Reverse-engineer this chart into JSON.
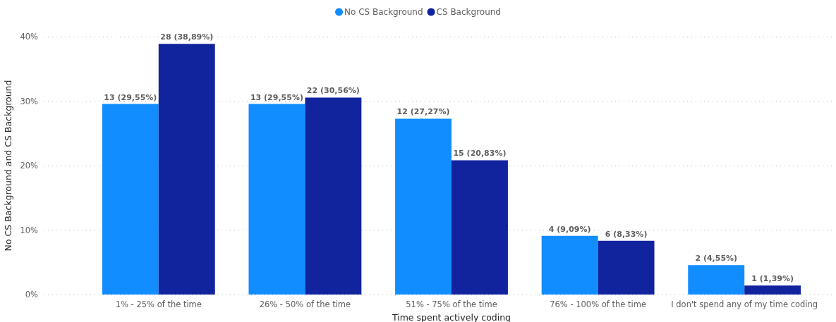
{
  "chart_data": {
    "type": "bar",
    "xlabel": "Time spent actively coding",
    "ylabel": "No CS Background and CS Background",
    "categories": [
      "1% - 25% of the time",
      "26% - 50% of the time",
      "51% - 75% of the time",
      "76% - 100% of the time",
      "I don't spend any of my time coding"
    ],
    "series": [
      {
        "name": "No CS Background",
        "color": "#118dff",
        "values": [
          29.55,
          29.55,
          27.27,
          9.09,
          4.55
        ],
        "value_labels": [
          "13 (29,55%)",
          "13 (29,55%)",
          "12 (27,27%)",
          "4 (9,09%)",
          "2 (4,55%)"
        ]
      },
      {
        "name": "CS Background",
        "color": "#12239e",
        "values": [
          38.89,
          30.56,
          20.83,
          8.33,
          1.39
        ],
        "value_labels": [
          "28 (38,89%)",
          "22 (30,56%)",
          "15 (20,83%)",
          "6 (8,33%)",
          "1 (1,39%)"
        ]
      }
    ],
    "ylim": [
      0,
      40
    ],
    "yticks": [
      {
        "value": 0,
        "label": "0%"
      },
      {
        "value": 10,
        "label": "10%"
      },
      {
        "value": 20,
        "label": "20%"
      },
      {
        "value": 30,
        "label": "30%"
      },
      {
        "value": 40,
        "label": "40%"
      }
    ],
    "grid": "y",
    "legend": "top"
  }
}
